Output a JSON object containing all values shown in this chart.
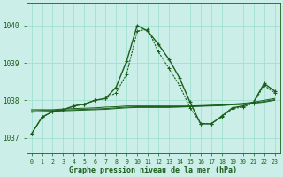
{
  "xlabel": "Graphe pression niveau de la mer (hPa)",
  "background_color": "#cceee8",
  "grid_color": "#99ddcc",
  "line_color": "#1a5e1a",
  "x_ticks": [
    0,
    1,
    2,
    3,
    4,
    5,
    6,
    7,
    8,
    9,
    10,
    11,
    12,
    13,
    14,
    15,
    16,
    17,
    18,
    19,
    20,
    21,
    22,
    23
  ],
  "ylim": [
    1036.6,
    1040.6
  ],
  "yticks": [
    1037,
    1038,
    1039,
    1040
  ],
  "main_series": [
    1037.1,
    1037.55,
    1037.7,
    1037.75,
    1037.85,
    1037.9,
    1038.0,
    1038.05,
    1038.35,
    1039.05,
    1040.0,
    1039.85,
    1039.5,
    1039.1,
    1038.6,
    1037.95,
    1037.37,
    1037.37,
    1037.58,
    1037.8,
    1037.85,
    1037.95,
    1038.45,
    1038.25
  ],
  "flat1": [
    1037.75,
    1037.75,
    1037.75,
    1037.77,
    1037.78,
    1037.79,
    1037.8,
    1037.82,
    1037.83,
    1037.85,
    1037.85,
    1037.85,
    1037.85,
    1037.85,
    1037.85,
    1037.85,
    1037.86,
    1037.87,
    1037.88,
    1037.9,
    1037.92,
    1037.95,
    1038.0,
    1038.05
  ],
  "flat2": [
    1037.72,
    1037.73,
    1037.73,
    1037.74,
    1037.75,
    1037.76,
    1037.77,
    1037.78,
    1037.8,
    1037.82,
    1037.83,
    1037.83,
    1037.83,
    1037.83,
    1037.83,
    1037.84,
    1037.85,
    1037.86,
    1037.87,
    1037.89,
    1037.9,
    1037.93,
    1037.97,
    1038.02
  ],
  "flat3": [
    1037.68,
    1037.7,
    1037.71,
    1037.72,
    1037.73,
    1037.74,
    1037.75,
    1037.76,
    1037.78,
    1037.8,
    1037.81,
    1037.81,
    1037.81,
    1037.81,
    1037.82,
    1037.83,
    1037.84,
    1037.85,
    1037.86,
    1037.88,
    1037.89,
    1037.92,
    1037.95,
    1038.0
  ],
  "secondary_series": [
    1037.1,
    1037.55,
    1037.7,
    1037.75,
    1037.85,
    1037.9,
    1038.0,
    1038.05,
    1038.2,
    1038.7,
    1039.85,
    1039.9,
    1039.3,
    1038.85,
    1038.4,
    1037.8,
    1037.38,
    1037.38,
    1037.55,
    1037.78,
    1037.82,
    1037.92,
    1038.4,
    1038.2
  ]
}
